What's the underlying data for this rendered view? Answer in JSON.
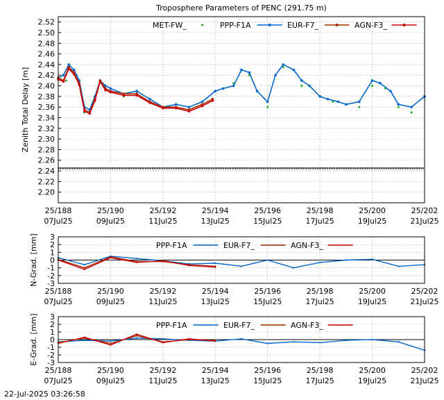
{
  "chart_data": [
    {
      "type": "line",
      "title": "Troposphere Parameters of PENC (291.75 m)",
      "ylabel": "Zenith Total Delay [m]",
      "ylim": [
        2.18,
        2.53
      ],
      "yticks": [
        "2.20",
        "2.22",
        "2.24",
        "2.26",
        "2.28",
        "2.30",
        "2.32",
        "2.34",
        "2.36",
        "2.38",
        "2.40",
        "2.42",
        "2.44",
        "2.46",
        "2.48",
        "2.50",
        "2.52"
      ],
      "xlim": [
        188,
        202
      ],
      "xticks": [
        {
          "value": 188,
          "doy": "25/188",
          "date": "07Jul25"
        },
        {
          "value": 190,
          "doy": "25/190",
          "date": "09Jul25"
        },
        {
          "value": 192,
          "doy": "25/192",
          "date": "11Jul25"
        },
        {
          "value": 194,
          "doy": "25/194",
          "date": "13Jul25"
        },
        {
          "value": 196,
          "doy": "25/196",
          "date": "15Jul25"
        },
        {
          "value": 198,
          "doy": "25/198",
          "date": "17Jul25"
        },
        {
          "value": 200,
          "doy": "25/200",
          "date": "19Jul25"
        },
        {
          "value": 202,
          "doy": "25/202",
          "date": "21Jul25"
        }
      ],
      "legend": [
        {
          "name": "MET-FW_",
          "color": "#00a000",
          "style": "points"
        },
        {
          "name": "PPP-F1A",
          "color": "#0066cc",
          "style": "line-points"
        },
        {
          "name": "EUR-F7_",
          "color": "#a52a00",
          "style": "line-points"
        },
        {
          "name": "AGN-F3_",
          "color": "#cc0000",
          "style": "line-points"
        }
      ],
      "series": [
        {
          "name": "MET-FW_",
          "color": "#00a000",
          "x": [
            188,
            188.3,
            188.5,
            188.7,
            189,
            189.3,
            189.6,
            190,
            190.5,
            191,
            191.5,
            192,
            192.5,
            193,
            193.5,
            194,
            194.3,
            194.7,
            195,
            195.3,
            195.6,
            196,
            196.3,
            196.6,
            197,
            197.3,
            197.6,
            198,
            198.5,
            199,
            199.5,
            200,
            200.5,
            201,
            201.5,
            202
          ],
          "y": [
            2.415,
            2.41,
            2.43,
            2.42,
            2.35,
            2.365,
            2.41,
            2.395,
            2.38,
            2.39,
            2.375,
            2.36,
            2.36,
            2.355,
            2.37,
            2.39,
            2.395,
            2.405,
            2.43,
            2.42,
            2.39,
            2.36,
            2.42,
            2.435,
            2.43,
            2.4,
            2.4,
            2.38,
            2.37,
            2.365,
            2.36,
            2.4,
            2.395,
            2.36,
            2.35,
            2.38
          ]
        },
        {
          "name": "PPP-F1A",
          "color": "#0066cc",
          "x": [
            188,
            188.2,
            188.4,
            188.6,
            188.8,
            189,
            189.2,
            189.4,
            189.6,
            189.8,
            190,
            190.5,
            191,
            191.5,
            192,
            192.5,
            193,
            193.5,
            194,
            194.3,
            194.7,
            195,
            195.3,
            195.6,
            196,
            196.3,
            196.6,
            197,
            197.3,
            197.6,
            198,
            198.3,
            198.7,
            199,
            199.5,
            200,
            200.3,
            200.7,
            201,
            201.5,
            202
          ],
          "y": [
            2.415,
            2.42,
            2.44,
            2.43,
            2.41,
            2.36,
            2.355,
            2.38,
            2.41,
            2.4,
            2.395,
            2.385,
            2.39,
            2.375,
            2.36,
            2.365,
            2.36,
            2.37,
            2.39,
            2.395,
            2.4,
            2.43,
            2.425,
            2.39,
            2.37,
            2.42,
            2.44,
            2.43,
            2.41,
            2.4,
            2.38,
            2.375,
            2.37,
            2.365,
            2.37,
            2.41,
            2.405,
            2.39,
            2.365,
            2.36,
            2.38
          ]
        },
        {
          "name": "EUR-F7_",
          "color": "#a52a00",
          "x": [
            188,
            188.2,
            188.4,
            188.6,
            188.8,
            189,
            189.2,
            189.4,
            189.6,
            189.8,
            190,
            190.5,
            191,
            191.5,
            192,
            192.5,
            193,
            193.5,
            193.9
          ],
          "y": [
            2.415,
            2.41,
            2.435,
            2.425,
            2.405,
            2.355,
            2.35,
            2.375,
            2.41,
            2.395,
            2.39,
            2.385,
            2.385,
            2.37,
            2.36,
            2.36,
            2.355,
            2.365,
            2.375
          ]
        },
        {
          "name": "AGN-F3_",
          "color": "#cc0000",
          "x": [
            188,
            188.2,
            188.4,
            188.6,
            188.8,
            189,
            189.2,
            189.4,
            189.6,
            189.8,
            190,
            190.5,
            191,
            191.5,
            192,
            192.5,
            193,
            193.5,
            193.9
          ],
          "y": [
            2.412,
            2.408,
            2.432,
            2.422,
            2.402,
            2.352,
            2.348,
            2.372,
            2.408,
            2.392,
            2.388,
            2.382,
            2.382,
            2.368,
            2.358,
            2.358,
            2.352,
            2.362,
            2.372
          ]
        },
        {
          "name": "MET-FW_ (2.245 baseline)",
          "color": "#000000",
          "x": [
            188,
            189,
            190,
            191,
            192,
            193,
            194,
            195,
            196,
            197,
            198,
            199,
            200,
            201,
            202
          ],
          "y": [
            2.245,
            2.245,
            2.245,
            2.245,
            2.245,
            2.245,
            2.245,
            2.245,
            2.245,
            2.245,
            2.245,
            2.245,
            2.245,
            2.245,
            2.245
          ]
        }
      ]
    },
    {
      "type": "line",
      "ylabel": "N-Grad. [mm]",
      "ylim": [
        -3,
        3
      ],
      "yticks": [
        "-3",
        "-2",
        "-1",
        "0",
        "1",
        "2",
        "3"
      ],
      "xlim": [
        188,
        202
      ],
      "legend": [
        {
          "name": "PPP-F1A",
          "color": "#0066cc"
        },
        {
          "name": "EUR-F7_",
          "color": "#a52a00"
        },
        {
          "name": "AGN-F3_",
          "color": "#cc0000"
        }
      ],
      "series": [
        {
          "name": "PPP-F1A",
          "color": "#0066cc",
          "x": [
            188,
            189,
            190,
            191,
            192,
            193,
            194,
            195,
            196,
            197,
            198,
            199,
            200,
            201,
            202
          ],
          "y": [
            0.3,
            -0.6,
            0.5,
            0.2,
            -0.1,
            -0.5,
            -0.4,
            -0.8,
            0.0,
            -1.0,
            -0.3,
            0.0,
            0.1,
            -0.8,
            -0.6
          ]
        },
        {
          "name": "EUR-F7_",
          "color": "#a52a00",
          "x": [
            188,
            189,
            190,
            191,
            192,
            193,
            194
          ],
          "y": [
            0.1,
            -1.0,
            0.4,
            -0.2,
            -0.2,
            -0.6,
            -0.8
          ]
        },
        {
          "name": "AGN-F3_",
          "color": "#cc0000",
          "x": [
            188,
            189,
            190,
            191,
            192,
            193,
            194
          ],
          "y": [
            0.0,
            -1.2,
            0.3,
            -0.3,
            -0.1,
            -0.7,
            -0.9
          ]
        }
      ]
    },
    {
      "type": "line",
      "ylabel": "E-Grad. [mm]",
      "ylim": [
        -3,
        3
      ],
      "yticks": [
        "-3",
        "-2",
        "-1",
        "0",
        "1",
        "2",
        "3"
      ],
      "xlim": [
        188,
        202
      ],
      "legend": [
        {
          "name": "PPP-F1A",
          "color": "#0066cc"
        },
        {
          "name": "EUR-F7_",
          "color": "#a52a00"
        },
        {
          "name": "AGN-F3_",
          "color": "#cc0000"
        }
      ],
      "series": [
        {
          "name": "PPP-F1A",
          "color": "#0066cc",
          "x": [
            188,
            189,
            190,
            191,
            192,
            193,
            194,
            195,
            196,
            197,
            198,
            199,
            200,
            201,
            202
          ],
          "y": [
            -0.3,
            -0.1,
            -0.2,
            0.2,
            0.1,
            -0.1,
            -0.2,
            0.1,
            -0.5,
            -0.3,
            -0.4,
            -0.1,
            0.0,
            -0.3,
            -1.4
          ]
        },
        {
          "name": "EUR-F7_",
          "color": "#a52a00",
          "x": [
            188,
            189,
            190,
            191,
            192,
            193,
            194
          ],
          "y": [
            -0.4,
            0.2,
            -0.5,
            0.5,
            -0.3,
            0.0,
            -0.1
          ]
        },
        {
          "name": "AGN-F3_",
          "color": "#cc0000",
          "x": [
            188,
            189,
            190,
            191,
            192,
            193,
            194
          ],
          "y": [
            -0.5,
            0.3,
            -0.7,
            0.7,
            -0.4,
            0.1,
            -0.2
          ]
        }
      ]
    }
  ],
  "timestamp": "22-Jul-2025 03:26:58"
}
